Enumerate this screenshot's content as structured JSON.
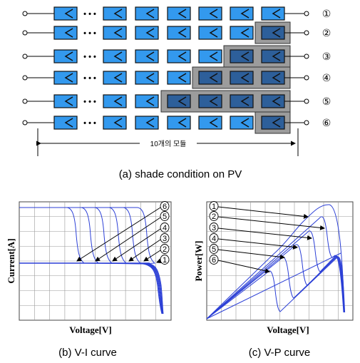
{
  "rows": [
    {
      "label": "①",
      "shaded": 0
    },
    {
      "label": "②",
      "shaded": 1
    },
    {
      "label": "③",
      "shaded": 2
    },
    {
      "label": "④",
      "shaded": 3
    },
    {
      "label": "⑤",
      "shaded": 4
    },
    {
      "label": "⑥",
      "shaded": 1
    }
  ],
  "ellipsis": "• • •",
  "module_span_label": "10개의 모듈",
  "captions": {
    "a": "(a) shade condition on PV",
    "b": "(b) V-I curve",
    "c": "(c) V-P curve"
  },
  "vi_chart": {
    "xlabel": "Voltage[V]",
    "ylabel": "Current[A]",
    "curve_labels": [
      "6",
      "5",
      "4",
      "3",
      "2",
      "1"
    ]
  },
  "vp_chart": {
    "xlabel": "Voltage[V]",
    "ylabel": "Power[W]",
    "curve_labels": [
      "1",
      "2",
      "3",
      "4",
      "5",
      "6"
    ]
  },
  "colors": {
    "module": "#3399ee",
    "module_shaded": "#2d5f9a",
    "shade_box": "#9c9c9c",
    "curve": "#2b3fd6",
    "grid": "#9a9a9a"
  }
}
